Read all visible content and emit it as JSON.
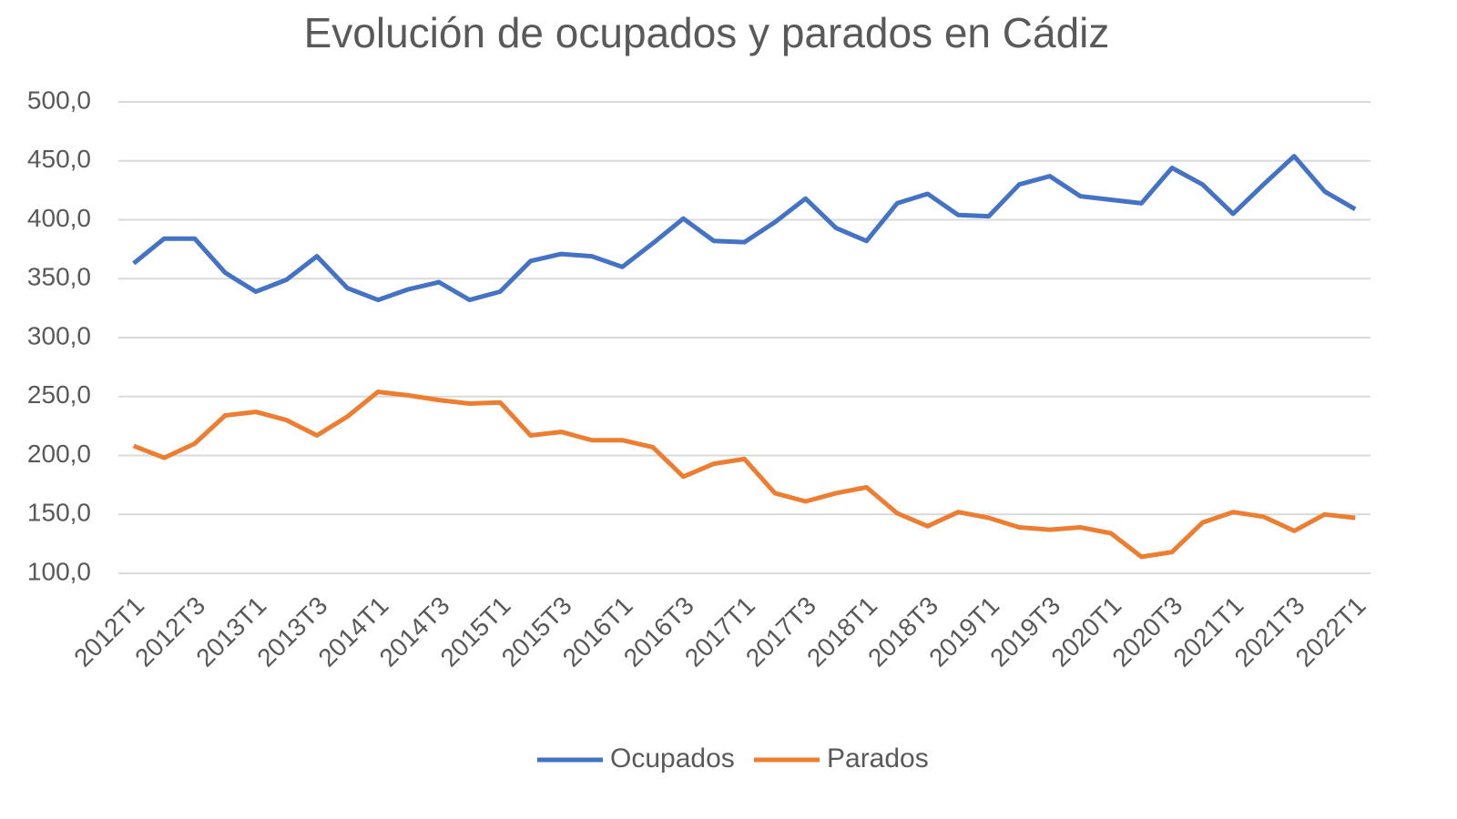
{
  "chart_data": {
    "type": "line",
    "title": "Evolución de ocupados y parados en Cádiz",
    "categories": [
      "2012T1",
      null,
      "2012T3",
      null,
      "2013T1",
      null,
      "2013T3",
      null,
      "2014T1",
      null,
      "2014T3",
      null,
      "2015T1",
      null,
      "2015T3",
      null,
      "2016T1",
      null,
      "2016T3",
      null,
      "2017T1",
      null,
      "2017T3",
      null,
      "2018T1",
      null,
      "2018T3",
      null,
      "2019T1",
      null,
      "2019T3",
      null,
      "2020T1",
      null,
      "2020T3",
      null,
      "2021T1",
      null,
      "2021T3",
      null,
      "2022T1"
    ],
    "series": [
      {
        "name": "Ocupados",
        "color": "#4472c4",
        "values": [
          363,
          384,
          384,
          355,
          339,
          349,
          369,
          342,
          332,
          341,
          347,
          332,
          339,
          365,
          371,
          369,
          360,
          380,
          401,
          382,
          381,
          398,
          418,
          393,
          382,
          414,
          422,
          404,
          403,
          430,
          437,
          420,
          417,
          414,
          444,
          430,
          405,
          430,
          454,
          424,
          409
        ]
      },
      {
        "name": "Parados",
        "color": "#ed7d31",
        "values": [
          208,
          198,
          210,
          234,
          237,
          230,
          217,
          233,
          254,
          251,
          247,
          244,
          245,
          217,
          220,
          213,
          213,
          207,
          182,
          193,
          197,
          168,
          161,
          168,
          173,
          151,
          140,
          152,
          147,
          139,
          137,
          139,
          134,
          114,
          118,
          143,
          152,
          148,
          136,
          150,
          147
        ]
      }
    ],
    "ylim": [
      100,
      500
    ],
    "yticks": [
      {
        "value": 100,
        "label": "100,0"
      },
      {
        "value": 150,
        "label": "150,0"
      },
      {
        "value": 200,
        "label": "200,0"
      },
      {
        "value": 250,
        "label": "250,0"
      },
      {
        "value": 300,
        "label": "300,0"
      },
      {
        "value": 350,
        "label": "350,0"
      },
      {
        "value": 400,
        "label": "400,0"
      },
      {
        "value": 450,
        "label": "450,0"
      },
      {
        "value": 500,
        "label": "500,0"
      }
    ],
    "grid": true,
    "legend": "bottom"
  }
}
